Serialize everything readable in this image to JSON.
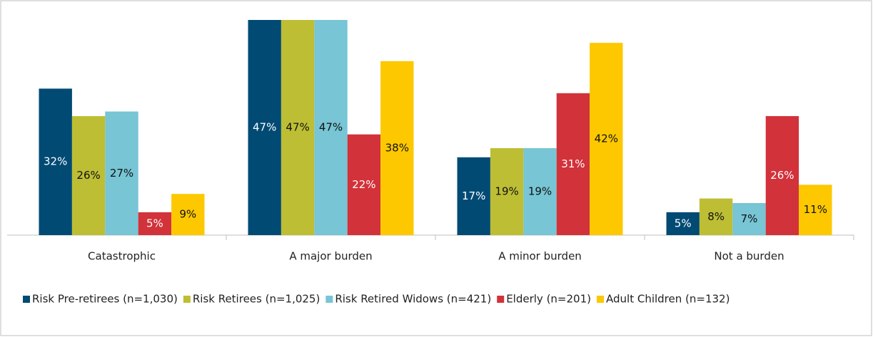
{
  "chart_data": {
    "type": "bar",
    "categories": [
      "Catastrophic",
      "A major burden",
      "A minor burden",
      "Not a burden"
    ],
    "series": [
      {
        "name": "Risk Pre-retirees (n=1,030)",
        "color": "#004a74",
        "values": [
          32,
          47,
          17,
          5
        ],
        "value_labels": [
          "32%",
          "47%",
          "17%",
          "5%"
        ]
      },
      {
        "name": "Risk Retirees (n=1,025)",
        "color": "#bdbe34",
        "values": [
          26,
          47,
          19,
          8
        ],
        "value_labels": [
          "26%",
          "47%",
          "19%",
          "8%"
        ]
      },
      {
        "name": "Risk Retired Widows (n=421)",
        "color": "#77c5d5",
        "values": [
          27,
          47,
          19,
          7
        ],
        "value_labels": [
          "27%",
          "47%",
          "19%",
          "7%"
        ]
      },
      {
        "name": "Elderly (n=201)",
        "color": "#d2323a",
        "values": [
          5,
          22,
          31,
          26
        ],
        "value_labels": [
          "5%",
          "22%",
          "31%",
          "26%"
        ]
      },
      {
        "name": "Adult Children (n=132)",
        "color": "#fdc800",
        "values": [
          9,
          38,
          42,
          11
        ],
        "value_labels": [
          "9%",
          "38%",
          "42%",
          "11%"
        ]
      }
    ],
    "legend": "bottom"
  }
}
